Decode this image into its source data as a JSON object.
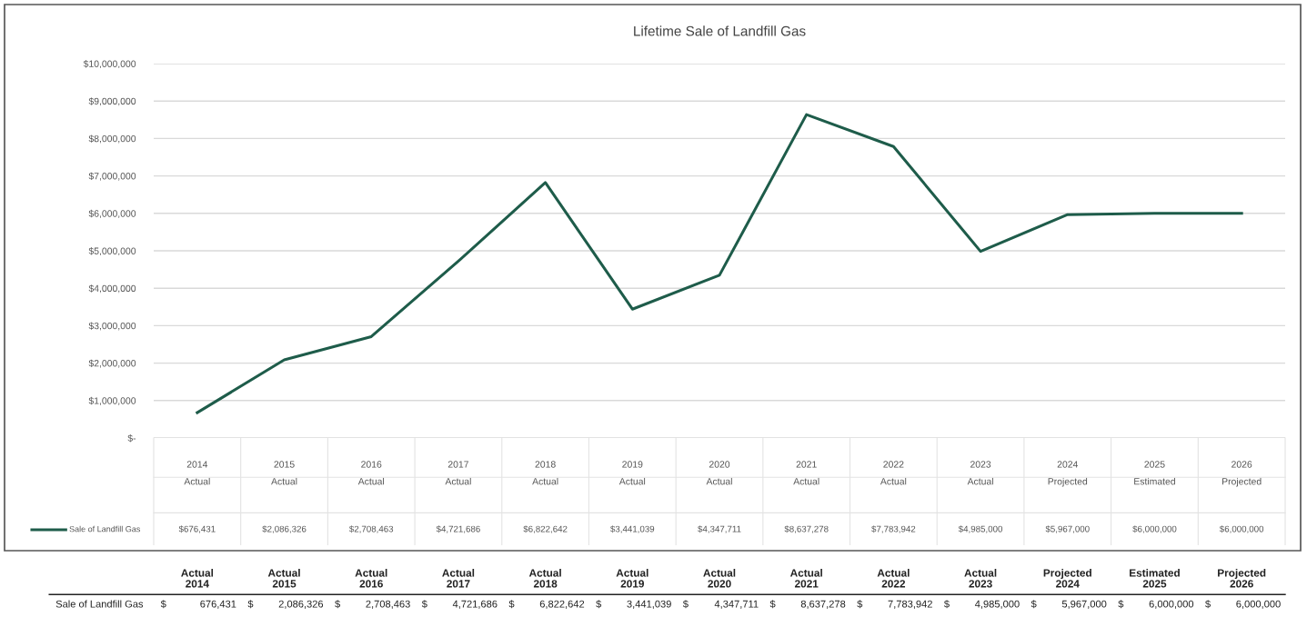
{
  "chart_data": {
    "type": "line",
    "title": "Lifetime Sale of Landfill Gas",
    "categories": [
      "2014\nActual",
      "2015\nActual",
      "2016\nActual",
      "2017\nActual",
      "2018\nActual",
      "2019\nActual",
      "2020\nActual",
      "2021\nActual",
      "2022\nActual",
      "2023\nActual",
      "2024\nProjected",
      "2025\nEstimated",
      "2026\nProjected"
    ],
    "series": [
      {
        "name": "Sale of Landfill Gas",
        "color": "#1e5c4a",
        "values": [
          676431,
          2086326,
          2708463,
          4721686,
          6822642,
          3441039,
          4347711,
          8637278,
          7783942,
          4985000,
          5967000,
          6000000,
          6000000
        ],
        "value_labels": [
          "$676,431",
          "$2,086,326",
          "$2,708,463",
          "$4,721,686",
          "$6,822,642",
          "$3,441,039",
          "$4,347,711",
          "$8,637,278",
          "$7,783,942",
          "$4,985,000",
          "$5,967,000",
          "$6,000,000",
          "$6,000,000"
        ]
      }
    ],
    "ylim": [
      0,
      10000000
    ],
    "yticks": [
      {
        "value": 0,
        "label": "$-"
      },
      {
        "value": 1000000,
        "label": "$1,000,000"
      },
      {
        "value": 2000000,
        "label": "$2,000,000"
      },
      {
        "value": 3000000,
        "label": "$3,000,000"
      },
      {
        "value": 4000000,
        "label": "$4,000,000"
      },
      {
        "value": 5000000,
        "label": "$5,000,000"
      },
      {
        "value": 6000000,
        "label": "$6,000,000"
      },
      {
        "value": 7000000,
        "label": "$7,000,000"
      },
      {
        "value": 8000000,
        "label": "$8,000,000"
      },
      {
        "value": 9000000,
        "label": "$9,000,000"
      },
      {
        "value": 10000000,
        "label": "$10,000,000"
      }
    ],
    "grid": "y",
    "marker": "none",
    "line_style": "solid",
    "legend": "bottom left",
    "annotations": [
      "Sale of Landfill Gas",
      "Actual\n2014",
      "Actual\n2015",
      "Actual\n2016",
      "Actual\n2017",
      "Actual\n2018",
      "Actual\n2019",
      "Actual\n2020",
      "Actual\n2021",
      "Actual\n2022",
      "Actual\n2023",
      "Projected\n2024",
      "Estimated\n2025",
      "Projected\n2026",
      "$   676,431",
      "$ 2,086,326",
      "$ 2,708,463",
      "$ 4,721,686",
      "$ 6,822,642",
      "$ 3,441,039",
      "$ 4,347,711",
      "$ 8,637,278",
      "$ 7,783,942",
      "$ 4,985,000",
      "$ 5,967,000",
      "$ 6,000,000",
      "$ 6,000,000"
    ]
  }
}
